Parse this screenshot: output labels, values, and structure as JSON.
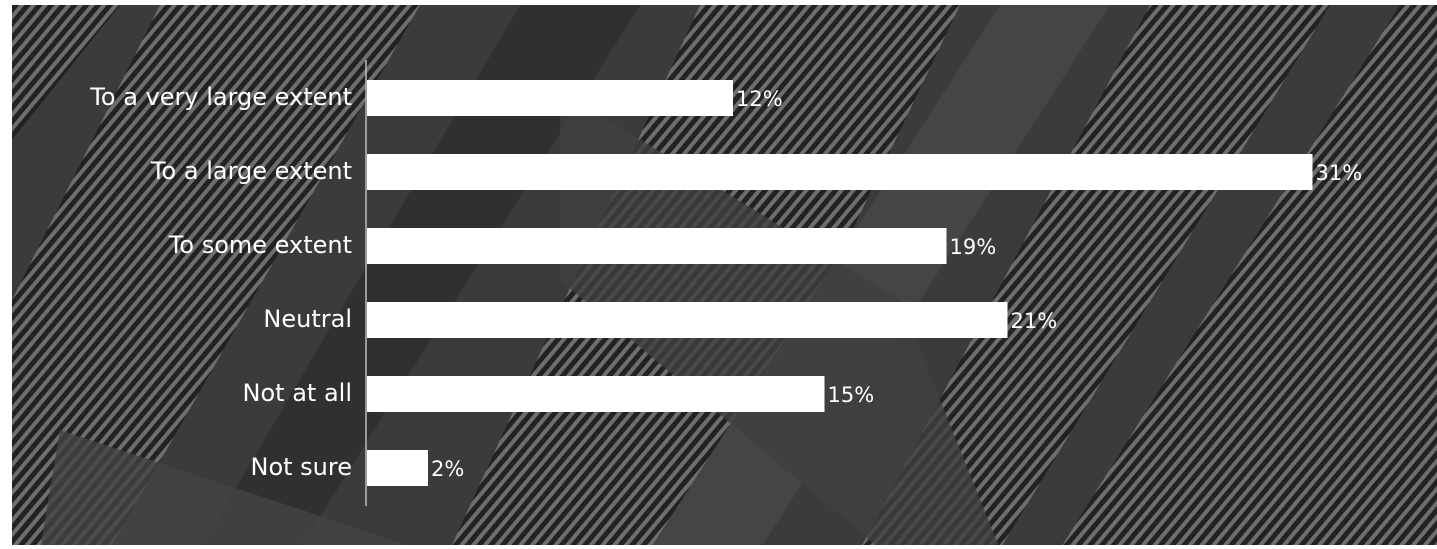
{
  "chart_data": {
    "type": "bar",
    "orientation": "horizontal",
    "categories": [
      "To a very large extent",
      "To a large extent",
      "To some extent",
      "Neutral",
      "Not at all",
      "Not sure"
    ],
    "values": [
      12,
      31,
      19,
      21,
      15,
      2
    ],
    "value_labels": [
      "12%",
      "31%",
      "19%",
      "21%",
      "15%",
      "2%"
    ],
    "color": "#ffffff"
  }
}
